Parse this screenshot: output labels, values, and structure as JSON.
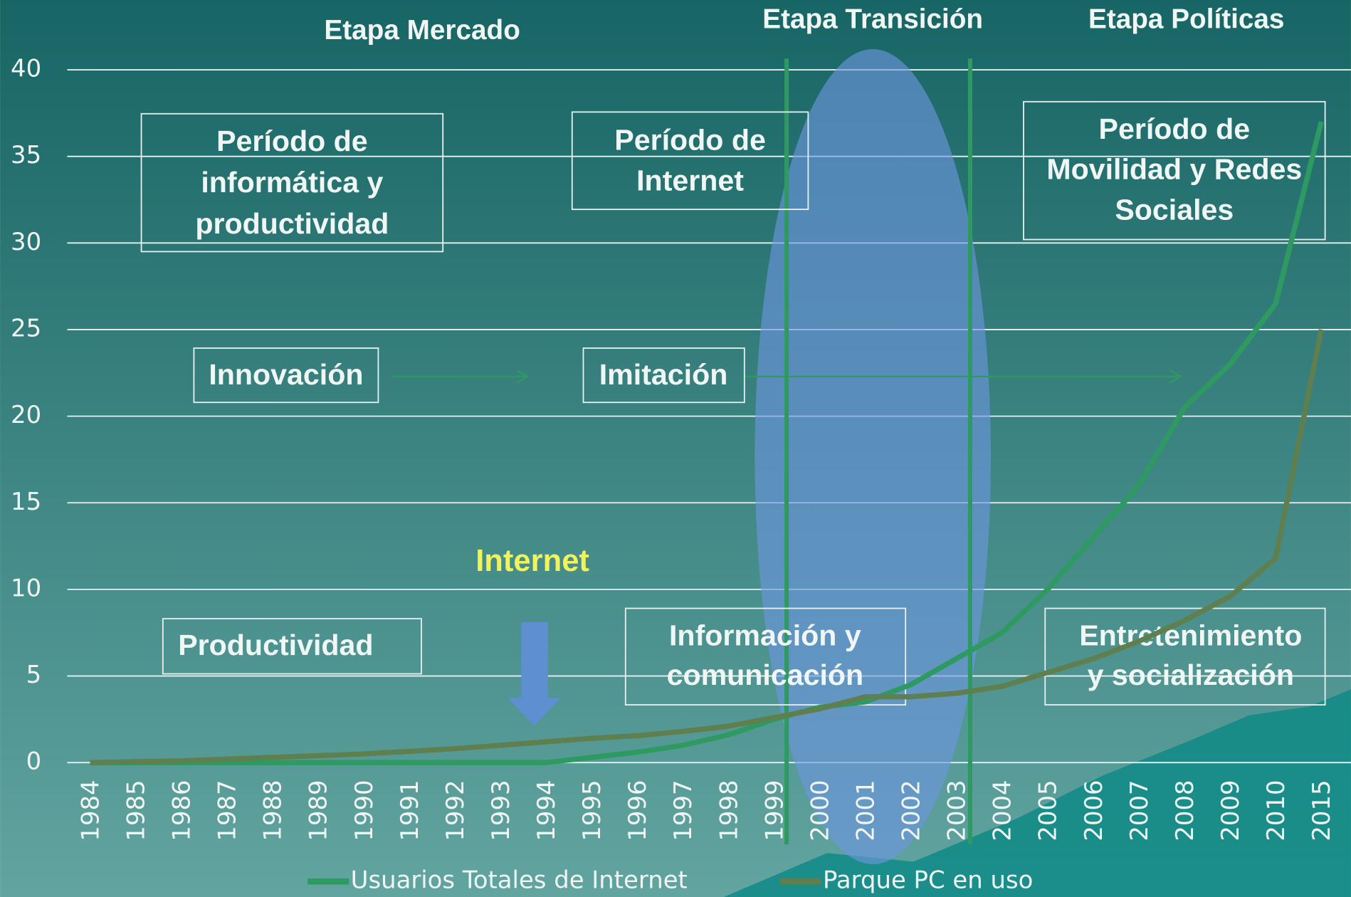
{
  "chart_data": {
    "type": "line",
    "stages": [
      "Etapa Mercado",
      "Etapa Transición",
      "Etapa Políticas"
    ],
    "boxes": [
      {
        "lines": [
          "Período de",
          "informática y",
          "productividad"
        ]
      },
      {
        "lines": [
          "Período de",
          "Internet"
        ]
      },
      {
        "lines": [
          "Período de",
          "Movilidad y Redes",
          "Sociales"
        ]
      },
      {
        "lines": [
          "Innovación"
        ]
      },
      {
        "lines": [
          "Imitación"
        ]
      },
      {
        "lines": [
          "Productividad"
        ]
      },
      {
        "lines": [
          "Información y",
          "comunicación"
        ]
      },
      {
        "lines": [
          "Entretenimiento",
          "y socialización"
        ]
      }
    ],
    "highlight": "Internet",
    "categories": [
      "1984",
      "1985",
      "1986",
      "1987",
      "1988",
      "1989",
      "1990",
      "1991",
      "1992",
      "1993",
      "1994",
      "1995",
      "1996",
      "1997",
      "1998",
      "1999",
      "2000",
      "2001",
      "2002",
      "2003",
      "2004",
      "2005",
      "2006",
      "2007",
      "2008",
      "2009",
      "2010",
      "2015"
    ],
    "series": [
      {
        "name": "Usuarios Totales de Internet",
        "color": "#2e9a62",
        "values": [
          0,
          0,
          0,
          0,
          0,
          0,
          0,
          0,
          0,
          0,
          0,
          0.3,
          0.6,
          1.0,
          1.6,
          2.5,
          3.2,
          3.5,
          4.5,
          6,
          7.5,
          10,
          13,
          16,
          20.5,
          23,
          26.5,
          37
        ]
      },
      {
        "name": "Parque PC en uso",
        "color": "#5f7f4f",
        "values": [
          0,
          0.05,
          0.1,
          0.2,
          0.3,
          0.4,
          0.5,
          0.65,
          0.8,
          1.0,
          1.2,
          1.4,
          1.55,
          1.8,
          2.1,
          2.6,
          3.1,
          3.8,
          3.8,
          4.0,
          4.4,
          5.2,
          6.0,
          7.0,
          8.2,
          9.6,
          11.8,
          25
        ]
      }
    ],
    "ylim": [
      0,
      40
    ],
    "yticks": [
      0,
      5,
      10,
      15,
      20,
      25,
      30,
      35,
      40
    ],
    "grid": true,
    "legend": "bottom"
  }
}
